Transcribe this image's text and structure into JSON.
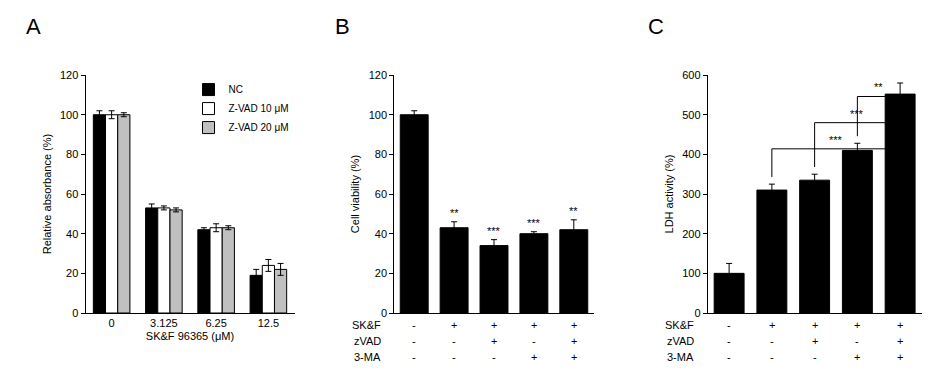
{
  "chart_data": [
    {
      "type": "bar",
      "title": "A",
      "x_label": "SK&F 96365 (μM)",
      "y_label": "Relative absorbance (%)",
      "categories": [
        "0",
        "3.125",
        "6.25",
        "12.5"
      ],
      "series": [
        {
          "name": "NC",
          "color": "#000000",
          "values": [
            100,
            53,
            42,
            19
          ],
          "errors": [
            2,
            2,
            1,
            3
          ]
        },
        {
          "name": "Z-VAD 10 μM",
          "color": "#ffffff",
          "values": [
            100,
            53,
            43,
            24
          ],
          "errors": [
            2,
            1,
            2,
            3
          ]
        },
        {
          "name": "Z-VAD 20 μM",
          "color": "#c0c0c0",
          "values": [
            100,
            52,
            43,
            22
          ],
          "errors": [
            1,
            1,
            1,
            3
          ]
        }
      ],
      "ylim": [
        0,
        120
      ],
      "yticks": [
        0,
        20,
        40,
        60,
        80,
        100,
        120
      ],
      "grid": false,
      "legend": "upper right"
    },
    {
      "type": "bar",
      "title": "B",
      "y_label": "Cell viability (%)",
      "categories": [
        null,
        null,
        null,
        null,
        null
      ],
      "values": [
        100,
        43,
        34,
        40,
        42
      ],
      "errors": [
        2,
        3,
        3,
        1,
        5
      ],
      "significance": [
        null,
        "**",
        "***",
        "***",
        "**"
      ],
      "color": "#000000",
      "ylim": [
        0,
        120
      ],
      "yticks": [
        0,
        20,
        40,
        60,
        80,
        100,
        120
      ],
      "grid": false,
      "tick_labels": "y",
      "treatments": [
        {
          "label": "SK&F",
          "values": [
            "-",
            "+",
            "+",
            "+",
            "+"
          ]
        },
        {
          "label": "zVAD",
          "values": [
            "-",
            "-",
            "+",
            "-",
            "+"
          ]
        },
        {
          "label": "3-MA",
          "values": [
            "-",
            "-",
            "-",
            "+",
            "+"
          ]
        }
      ]
    },
    {
      "type": "bar",
      "title": "C",
      "y_label": "LDH activity (%)",
      "categories": [
        null,
        null,
        null,
        null,
        null
      ],
      "values": [
        100,
        310,
        335,
        410,
        552
      ],
      "errors": [
        25,
        15,
        15,
        18,
        28
      ],
      "comparisons": [
        {
          "from": 1,
          "to": 4,
          "label": "***"
        },
        {
          "from": 2,
          "to": 4,
          "label": "***"
        },
        {
          "from": 3,
          "to": 4,
          "label": "**"
        }
      ],
      "color": "#000000",
      "ylim": [
        0,
        600
      ],
      "yticks": [
        0,
        100,
        200,
        300,
        400,
        500,
        600
      ],
      "grid": false,
      "tick_labels": "y",
      "treatments": [
        {
          "label": "SK&F",
          "values": [
            "-",
            "+",
            "+",
            "+",
            "+"
          ]
        },
        {
          "label": "zVAD",
          "values": [
            "-",
            "-",
            "+",
            "-",
            "+"
          ]
        },
        {
          "label": "3-MA",
          "values": [
            "-",
            "-",
            "-",
            "+",
            "+"
          ]
        }
      ]
    }
  ]
}
